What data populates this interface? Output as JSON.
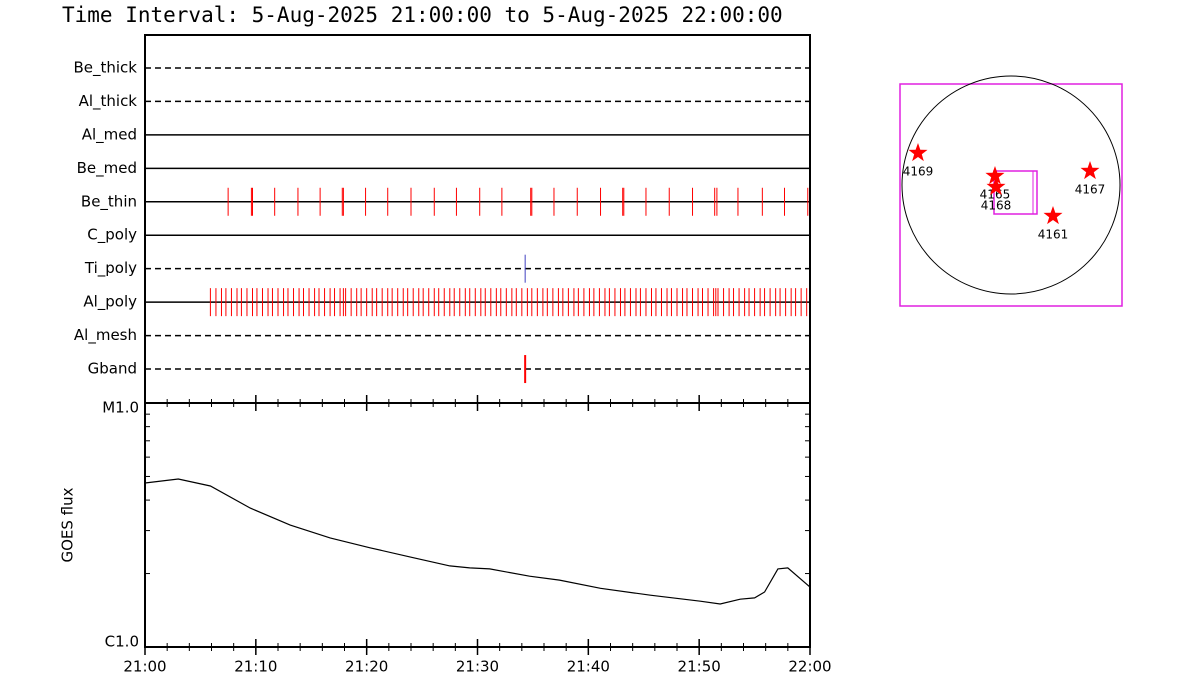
{
  "title": "Time Interval:  5-Aug-2025 21:00:00 to  5-Aug-2025 22:00:00",
  "chart_data": [
    {
      "type": "event",
      "xlim": [
        0,
        60
      ],
      "series": [
        {
          "name": "Be_thick",
          "style": "dashed",
          "color": "#ff0000",
          "values": []
        },
        {
          "name": "Al_thick",
          "style": "dashed",
          "color": "#ff0000",
          "values": []
        },
        {
          "name": "Al_med",
          "style": "solid",
          "color": "#ff0000",
          "values": []
        },
        {
          "name": "Be_med",
          "style": "solid",
          "color": "#ff0000",
          "values": []
        },
        {
          "name": "Be_thin",
          "style": "solid",
          "color": "#ff0000",
          "values": [
            7.5,
            9.6,
            9.7,
            11.7,
            13.8,
            15.8,
            17.8,
            17.9,
            19.9,
            21.9,
            24.0,
            26.1,
            28.1,
            30.2,
            32.2,
            34.8,
            34.9,
            36.9,
            39.0,
            41.1,
            43.1,
            43.2,
            45.2,
            47.3,
            49.4,
            51.4,
            51.6,
            53.5,
            55.7,
            57.7,
            59.8
          ]
        },
        {
          "name": "C_poly",
          "style": "solid",
          "color": "#ff0000",
          "values": []
        },
        {
          "name": "Ti_poly",
          "style": "dashed",
          "color": "#4040c0",
          "values": [
            34.3
          ]
        },
        {
          "name": "Al_poly",
          "style": "solid",
          "color": "#ff0000",
          "values": [
            5.9,
            6.4,
            6.9,
            7.3,
            7.8,
            8.3,
            8.7,
            9.2,
            9.7,
            10.1,
            10.6,
            11.1,
            11.5,
            12.0,
            12.5,
            12.9,
            13.4,
            13.9,
            14.3,
            14.8,
            15.3,
            15.7,
            16.2,
            16.7,
            17.1,
            17.6,
            17.9,
            18.1,
            18.6,
            19.1,
            19.5,
            20.0,
            20.5,
            20.9,
            21.4,
            21.9,
            22.3,
            22.8,
            23.3,
            23.7,
            24.2,
            24.7,
            25.1,
            25.6,
            26.1,
            26.5,
            27.0,
            27.5,
            27.9,
            28.4,
            28.9,
            29.3,
            29.8,
            30.3,
            30.7,
            31.2,
            31.7,
            32.1,
            32.6,
            33.1,
            33.5,
            34.0,
            34.5,
            34.9,
            35.4,
            35.9,
            36.3,
            36.8,
            37.3,
            37.7,
            38.2,
            38.7,
            39.1,
            39.6,
            40.1,
            40.5,
            41.0,
            41.5,
            41.9,
            42.4,
            42.9,
            43.3,
            43.8,
            44.3,
            44.7,
            45.2,
            45.7,
            46.1,
            46.6,
            47.1,
            47.5,
            48.0,
            48.5,
            48.9,
            49.4,
            49.9,
            50.3,
            50.8,
            51.3,
            51.5,
            51.7,
            52.2,
            52.7,
            53.1,
            53.6,
            54.1,
            54.5,
            55.0,
            55.5,
            55.9,
            56.4,
            56.9,
            57.3,
            57.8,
            58.3,
            58.7,
            59.2,
            59.7
          ]
        },
        {
          "name": "Al_mesh",
          "style": "dashed",
          "color": "#ff0000",
          "values": []
        },
        {
          "name": "Gband",
          "style": "dashed",
          "color": "#ff0000",
          "linewidth": 2,
          "values": [
            34.3
          ]
        }
      ]
    },
    {
      "type": "line",
      "ylabel": "GOES flux",
      "log_scale": true,
      "color": "#000000",
      "x": [
        0,
        3.0,
        5.9,
        9.5,
        13.1,
        16.7,
        20.3,
        23.9,
        27.5,
        29.3,
        31.1,
        34.7,
        37.4,
        41.1,
        45.6,
        50.1,
        51.9,
        53.7,
        55.0,
        55.9,
        57.1,
        58.0,
        60
      ],
      "values": [
        4.7e-06,
        4.88e-06,
        4.57e-06,
        3.71e-06,
        3.16e-06,
        2.8e-06,
        2.55e-06,
        2.34e-06,
        2.15e-06,
        2.11e-06,
        2.09e-06,
        1.95e-06,
        1.88e-06,
        1.74e-06,
        1.63e-06,
        1.54e-06,
        1.5e-06,
        1.57e-06,
        1.59e-06,
        1.68e-06,
        2.09e-06,
        2.11e-06,
        1.76e-06
      ],
      "xlim": [
        0,
        60
      ],
      "xticks": [
        {
          "value": 0,
          "label": "21:00"
        },
        {
          "value": 10,
          "label": "21:10"
        },
        {
          "value": 20,
          "label": "21:20"
        },
        {
          "value": 30,
          "label": "21:30"
        },
        {
          "value": 40,
          "label": "21:40"
        },
        {
          "value": 50,
          "label": "21:50"
        },
        {
          "value": 60,
          "label": "22:00"
        }
      ],
      "ylim": [
        1e-06,
        1e-05
      ],
      "yticks": [
        {
          "value": 1e-06,
          "label": "C1.0"
        },
        {
          "value": 1e-05,
          "label": "M1.0"
        }
      ]
    },
    {
      "type": "scatter",
      "color": "#ff0000",
      "xlim": [
        -1100,
        1100
      ],
      "ylim": [
        -1100,
        1100
      ],
      "labels": [
        "4169",
        "4165",
        "4168",
        "4167",
        "4161"
      ],
      "x": [
        -922,
        -159,
        -149,
        783,
        416
      ],
      "values": [
        416,
        188,
        79,
        238,
        -208
      ]
    }
  ]
}
